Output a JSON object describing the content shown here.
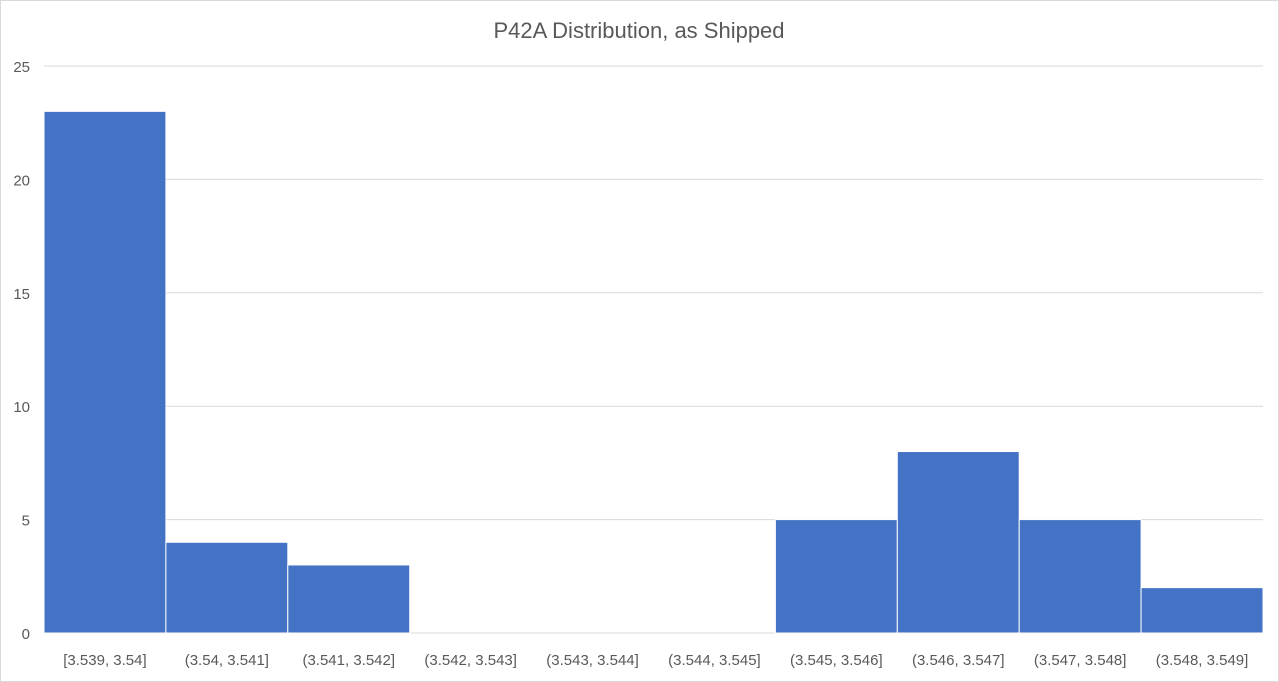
{
  "chart_data": {
    "type": "bar",
    "title": "P42A Distribution, as Shipped",
    "xlabel": "",
    "ylabel": "",
    "categories": [
      "[3.539, 3.54]",
      "(3.54, 3.541]",
      "(3.541, 3.542]",
      "(3.542, 3.543]",
      "(3.543, 3.544]",
      "(3.544, 3.545]",
      "(3.545, 3.546]",
      "(3.546, 3.547]",
      "(3.547, 3.548]",
      "(3.548, 3.549]"
    ],
    "values": [
      23,
      4,
      3,
      0,
      0,
      0,
      5,
      8,
      5,
      2
    ],
    "ylim": [
      0,
      25
    ],
    "yticks": [
      0,
      5,
      10,
      15,
      20,
      25
    ],
    "grid": true,
    "bar_color": "#4472C4",
    "legend": "none"
  }
}
